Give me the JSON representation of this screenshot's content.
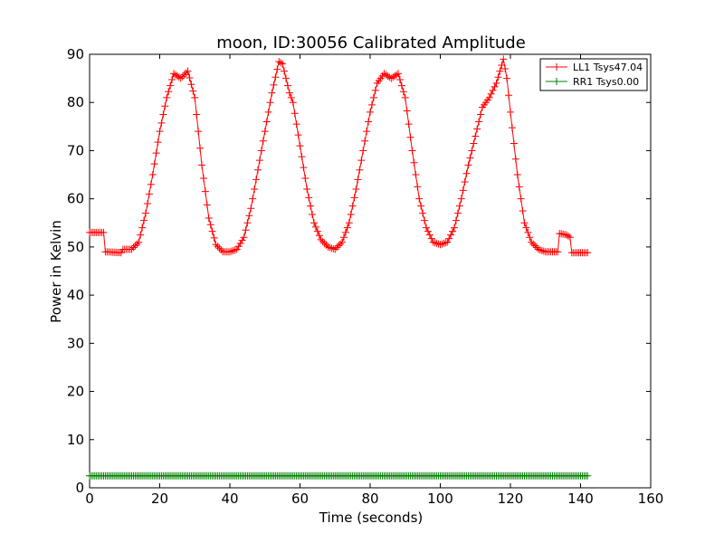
{
  "chart_data": {
    "type": "line",
    "title": "moon, ID:30056 Calibrated Amplitude",
    "xlabel": "Time (seconds)",
    "ylabel": "Power in Kelvin",
    "xlim": [
      0,
      160
    ],
    "ylim": [
      0,
      90
    ],
    "x_ticks": [
      "0",
      "20",
      "40",
      "60",
      "80",
      "100",
      "120",
      "140",
      "160"
    ],
    "y_ticks": [
      "0",
      "10",
      "20",
      "30",
      "40",
      "50",
      "60",
      "70",
      "80",
      "90"
    ],
    "grid": false,
    "legend_position": "top-right",
    "marker": "+",
    "series": [
      {
        "name": "LL1 Tsys47.04",
        "color": "#ff0000",
        "x": [
          0,
          4,
          4.5,
          7,
          9,
          9.5,
          12,
          14,
          16,
          18,
          20,
          22,
          24,
          26,
          28,
          30,
          32,
          34,
          36,
          38,
          40,
          42,
          44,
          46,
          48,
          50,
          52,
          54,
          55,
          56,
          57,
          58,
          60,
          62,
          64,
          66,
          68,
          70,
          72,
          74,
          76,
          78,
          80,
          82,
          84,
          86,
          88,
          90,
          92,
          94,
          96,
          98,
          100,
          102,
          104,
          106,
          108,
          110,
          112,
          114,
          116,
          118,
          119,
          120,
          122,
          124,
          126,
          128,
          130,
          132,
          133.5,
          134,
          136,
          137,
          137.5,
          140,
          142
        ],
        "values": [
          53,
          53,
          49,
          48.9,
          48.8,
          49.5,
          49.5,
          51,
          57,
          65,
          74,
          81,
          86,
          85,
          86.5,
          81,
          67,
          56,
          50.5,
          49,
          49,
          49.5,
          52,
          58,
          66,
          74,
          82,
          88.5,
          88,
          85,
          82,
          80,
          71,
          62,
          55,
          51.5,
          50,
          49.5,
          51,
          55,
          62,
          70,
          78,
          84,
          86,
          85,
          86,
          81,
          70,
          60,
          54,
          51,
          50.5,
          51,
          54,
          60,
          67,
          73,
          79,
          81,
          84,
          89,
          85,
          78,
          65,
          55,
          51,
          49.5,
          49,
          49,
          49,
          52.8,
          52.5,
          52,
          48.8,
          48.8,
          48.8
        ]
      },
      {
        "name": "RR1 Tsys0.00",
        "color": "#008000",
        "x": [
          0,
          142
        ],
        "values": [
          2.5,
          2.5
        ]
      }
    ]
  }
}
